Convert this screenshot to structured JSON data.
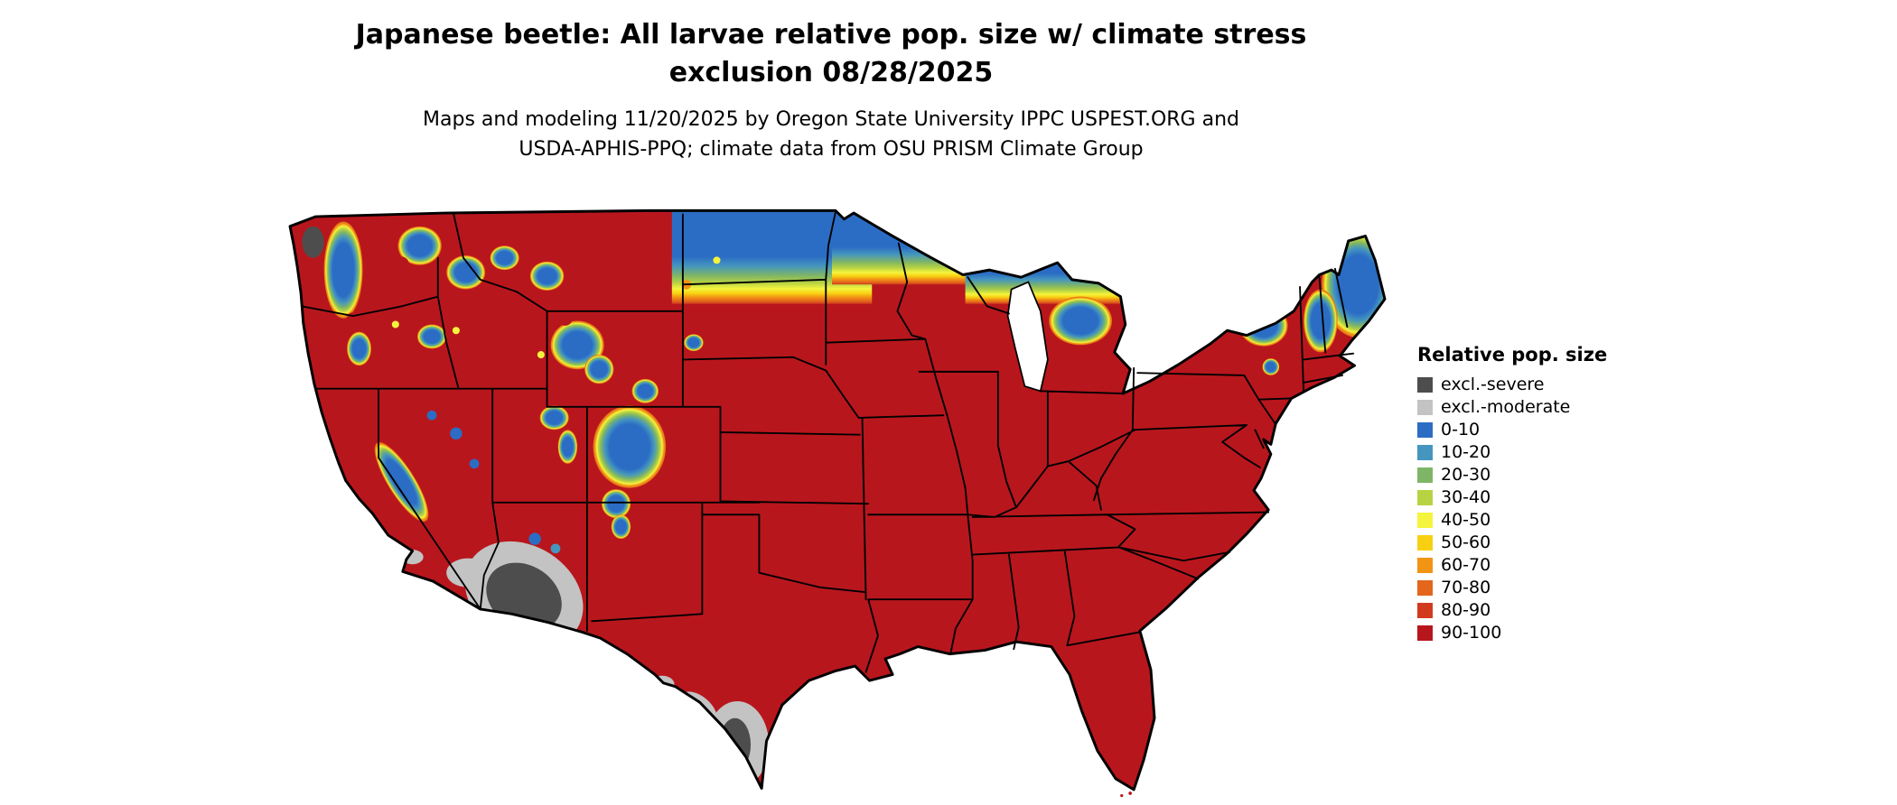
{
  "title": {
    "line1": "Japanese beetle: All larvae relative pop. size w/ climate stress",
    "line2": "exclusion 08/28/2025"
  },
  "subtitle": {
    "line1": "Maps and modeling 11/20/2025 by Oregon State University IPPC USPEST.ORG and",
    "line2": "USDA-APHIS-PPQ; climate data from OSU PRISM Climate Group"
  },
  "legend": {
    "title": "Relative pop. size",
    "items": [
      {
        "label": "excl.-severe",
        "color": "#4d4d4d"
      },
      {
        "label": "excl.-moderate",
        "color": "#c3c3c3"
      },
      {
        "label": "0-10",
        "color": "#2b6dc4"
      },
      {
        "label": "10-20",
        "color": "#4596be"
      },
      {
        "label": "20-30",
        "color": "#7fb566"
      },
      {
        "label": "30-40",
        "color": "#b8d342"
      },
      {
        "label": "40-50",
        "color": "#f4f43e"
      },
      {
        "label": "50-60",
        "color": "#f8d012"
      },
      {
        "label": "60-70",
        "color": "#f29414"
      },
      {
        "label": "70-80",
        "color": "#e2661c"
      },
      {
        "label": "80-90",
        "color": "#d23a1e"
      },
      {
        "label": "90-100",
        "color": "#b8161d"
      }
    ]
  },
  "map": {
    "region": "contiguous-united-states",
    "kind": "raster-choropleth",
    "dominant_class": "90-100"
  }
}
